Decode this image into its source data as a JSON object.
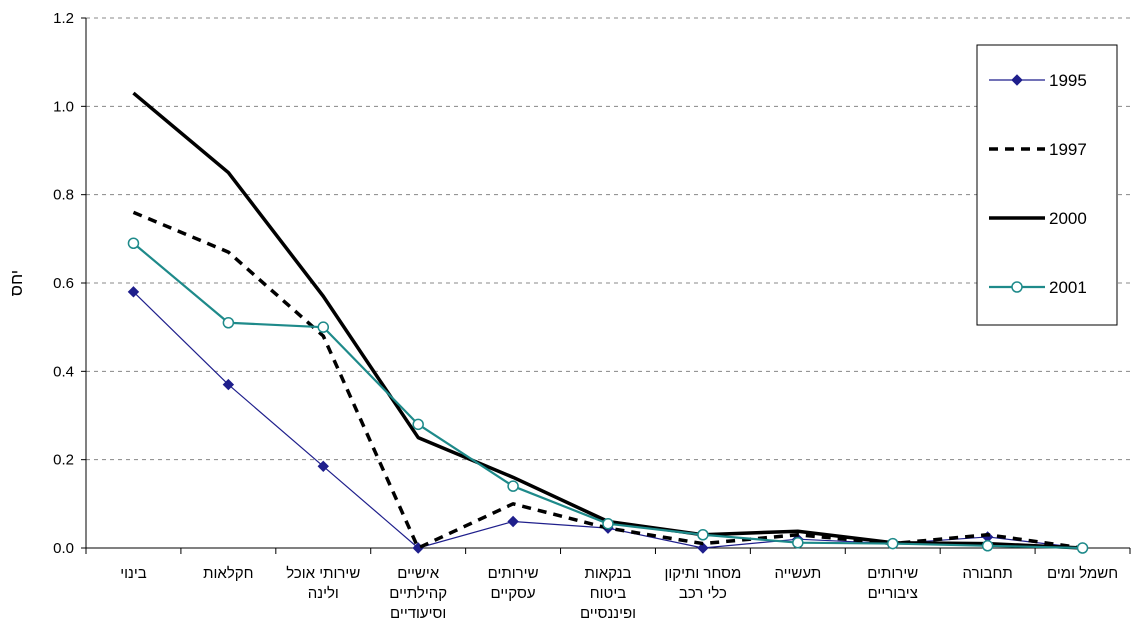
{
  "chart_data": {
    "type": "line",
    "title": "",
    "xlabel": "",
    "ylabel": "יחס",
    "ylim": [
      0,
      1.2
    ],
    "yticks": [
      "0.0",
      "0.2",
      "0.4",
      "0.6",
      "0.8",
      "1.0",
      "1.2"
    ],
    "grid": true,
    "legend_position": "top-right",
    "categories": [
      [
        "בינוי"
      ],
      [
        "חקלאות"
      ],
      [
        "שירותי אוכל",
        "ולינה"
      ],
      [
        "אישיים",
        "קהילתיים",
        "וסיעודיים"
      ],
      [
        "שירותים",
        "עסקיים"
      ],
      [
        "בנקאות",
        "ביטוח",
        "ופיננסיים"
      ],
      [
        "מסחר ותיקון",
        "כלי רכב"
      ],
      [
        "תעשייה"
      ],
      [
        "שירותים",
        "ציבוריים"
      ],
      [
        "תחבורה"
      ],
      [
        "חשמל ומים"
      ]
    ],
    "series": [
      {
        "name": "1995",
        "color": "#1f1f8c",
        "style": "thin-diamond",
        "values": [
          0.58,
          0.37,
          0.185,
          0.0,
          0.06,
          0.045,
          0.0,
          0.02,
          0.01,
          0.025,
          0.0
        ]
      },
      {
        "name": "1997",
        "color": "#000000",
        "style": "dashed",
        "values": [
          0.76,
          0.67,
          0.48,
          0.0,
          0.1,
          0.045,
          0.01,
          0.03,
          0.01,
          0.03,
          0.0
        ]
      },
      {
        "name": "2000",
        "color": "#000000",
        "style": "thick",
        "values": [
          1.03,
          0.85,
          0.57,
          0.25,
          0.16,
          0.06,
          0.03,
          0.038,
          0.012,
          0.01,
          0.0
        ]
      },
      {
        "name": "2001",
        "color": "#1e8a8a",
        "style": "circle",
        "values": [
          0.69,
          0.51,
          0.5,
          0.28,
          0.14,
          0.055,
          0.03,
          0.012,
          0.01,
          0.005,
          0.0
        ]
      }
    ]
  }
}
